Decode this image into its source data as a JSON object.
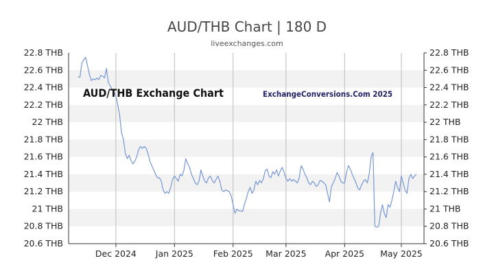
{
  "title": "AUD/THB Chart | 180 D",
  "subtitle": "liveexchanges.com",
  "watermark_left": "AUD/THB Exchange Chart",
  "watermark_right": "ExchangeConversions.Com 2025",
  "colors": {
    "line": "#7596d4",
    "band": "#f2f2f2",
    "axis": "#333333",
    "grid_v": "#bbbbbb"
  },
  "chart_data": {
    "type": "line",
    "title": "AUD/THB Chart | 180 D",
    "ylim": [
      20.6,
      22.8
    ],
    "y_ticks": [
      22.8,
      22.6,
      22.4,
      22.2,
      22.0,
      21.8,
      21.6,
      21.4,
      21.2,
      21.0,
      20.8,
      20.6
    ],
    "y_tick_labels": [
      "22.8 THB",
      "22.6 THB",
      "22.4 THB",
      "22.2 THB",
      "22 THB",
      "21.8 THB",
      "21.6 THB",
      "21.4 THB",
      "21.2 THB",
      "21 THB",
      "20.8 THB",
      "20.6 THB"
    ],
    "x_tick_labels": [
      "Dec 2024",
      "Jan 2025",
      "Feb 2025",
      "Mar 2025",
      "Apr 2025",
      "May 2025"
    ],
    "x_tick_dates": [
      "2024-12-01",
      "2025-01-01",
      "2025-02-01",
      "2025-03-01",
      "2025-04-01",
      "2025-05-01"
    ],
    "xlim": [
      "2024-11-06",
      "2025-05-13"
    ],
    "grid": "horizontal bands + vertical month lines",
    "series": [
      {
        "x": [
          "2024-11-11",
          "2024-11-12",
          "2024-11-13",
          "2024-11-14",
          "2024-11-15",
          "2024-11-16",
          "2024-11-17",
          "2024-11-18",
          "2024-11-19",
          "2024-11-20",
          "2024-11-21",
          "2024-11-22",
          "2024-11-23",
          "2024-11-24",
          "2024-11-25",
          "2024-11-26",
          "2024-11-27",
          "2024-11-28",
          "2024-11-29",
          "2024-11-30",
          "2024-12-01",
          "2024-12-02",
          "2024-12-03",
          "2024-12-04",
          "2024-12-05",
          "2024-12-06",
          "2024-12-07",
          "2024-12-08",
          "2024-12-09",
          "2024-12-10",
          "2024-12-11",
          "2024-12-12",
          "2024-12-13",
          "2024-12-14",
          "2024-12-15",
          "2024-12-16",
          "2024-12-17",
          "2024-12-18",
          "2024-12-19",
          "2024-12-20",
          "2024-12-21",
          "2024-12-22",
          "2024-12-23",
          "2024-12-24",
          "2024-12-25",
          "2024-12-26",
          "2024-12-27",
          "2024-12-28",
          "2024-12-29",
          "2024-12-30",
          "2024-12-31",
          "2025-01-01",
          "2025-01-02",
          "2025-01-03",
          "2025-01-04",
          "2025-01-05",
          "2025-01-06",
          "2025-01-07",
          "2025-01-08",
          "2025-01-09",
          "2025-01-10",
          "2025-01-11",
          "2025-01-12",
          "2025-01-13",
          "2025-01-14",
          "2025-01-15",
          "2025-01-16",
          "2025-01-17",
          "2025-01-18",
          "2025-01-19",
          "2025-01-20",
          "2025-01-21",
          "2025-01-22",
          "2025-01-23",
          "2025-01-24",
          "2025-01-25",
          "2025-01-26",
          "2025-01-27",
          "2025-01-28",
          "2025-01-29",
          "2025-01-30",
          "2025-01-31",
          "2025-02-01",
          "2025-02-02",
          "2025-02-03",
          "2025-02-04",
          "2025-02-05",
          "2025-02-06",
          "2025-02-07",
          "2025-02-08",
          "2025-02-09",
          "2025-02-10",
          "2025-02-11",
          "2025-02-12",
          "2025-02-13",
          "2025-02-14",
          "2025-02-15",
          "2025-02-16",
          "2025-02-17",
          "2025-02-18",
          "2025-02-19",
          "2025-02-20",
          "2025-02-21",
          "2025-02-22",
          "2025-02-23",
          "2025-02-24",
          "2025-02-25",
          "2025-02-26",
          "2025-02-27",
          "2025-02-28",
          "2025-03-01",
          "2025-03-02",
          "2025-03-03",
          "2025-03-04",
          "2025-03-05",
          "2025-03-06",
          "2025-03-07",
          "2025-03-08",
          "2025-03-09",
          "2025-03-10",
          "2025-03-11",
          "2025-03-12",
          "2025-03-13",
          "2025-03-14",
          "2025-03-15",
          "2025-03-16",
          "2025-03-17",
          "2025-03-18",
          "2025-03-19",
          "2025-03-20",
          "2025-03-21",
          "2025-03-22",
          "2025-03-23",
          "2025-03-24",
          "2025-03-25",
          "2025-03-26",
          "2025-03-27",
          "2025-03-28",
          "2025-03-29",
          "2025-03-30",
          "2025-03-31",
          "2025-04-01",
          "2025-04-02",
          "2025-04-03",
          "2025-04-04",
          "2025-04-05",
          "2025-04-06",
          "2025-04-07",
          "2025-04-08",
          "2025-04-09",
          "2025-04-10",
          "2025-04-11",
          "2025-04-12",
          "2025-04-13",
          "2025-04-14",
          "2025-04-15",
          "2025-04-16",
          "2025-04-17",
          "2025-04-18",
          "2025-04-19",
          "2025-04-20",
          "2025-04-21",
          "2025-04-22",
          "2025-04-23",
          "2025-04-24",
          "2025-04-25",
          "2025-04-26",
          "2025-04-27",
          "2025-04-28",
          "2025-04-29",
          "2025-04-30",
          "2025-05-01",
          "2025-05-02",
          "2025-05-03",
          "2025-05-04",
          "2025-05-05",
          "2025-05-06",
          "2025-05-07",
          "2025-05-08",
          "2025-05-09"
        ],
        "y": [
          22.52,
          22.52,
          22.68,
          22.72,
          22.75,
          22.65,
          22.55,
          22.48,
          22.5,
          22.49,
          22.51,
          22.49,
          22.54,
          22.53,
          22.51,
          22.62,
          22.46,
          22.42,
          22.38,
          22.35,
          22.3,
          22.2,
          22.08,
          21.88,
          21.8,
          21.64,
          21.58,
          21.62,
          21.56,
          21.52,
          21.55,
          21.6,
          21.68,
          21.72,
          21.7,
          21.72,
          21.7,
          21.64,
          21.55,
          21.5,
          21.45,
          21.4,
          21.36,
          21.36,
          21.32,
          21.22,
          21.18,
          21.2,
          21.18,
          21.25,
          21.34,
          21.38,
          21.35,
          21.32,
          21.4,
          21.38,
          21.45,
          21.58,
          21.52,
          21.48,
          21.4,
          21.35,
          21.3,
          21.28,
          21.32,
          21.45,
          21.38,
          21.32,
          21.3,
          21.36,
          21.38,
          21.33,
          21.3,
          21.34,
          21.38,
          21.32,
          21.22,
          21.2,
          21.22,
          21.21,
          21.2,
          21.15,
          21.05,
          20.95,
          21.0,
          20.98,
          20.98,
          20.97,
          21.05,
          21.12,
          21.2,
          21.25,
          21.18,
          21.22,
          21.32,
          21.28,
          21.33,
          21.3,
          21.35,
          21.44,
          21.46,
          21.38,
          21.36,
          21.43,
          21.4,
          21.45,
          21.38,
          21.44,
          21.48,
          21.42,
          21.35,
          21.32,
          21.35,
          21.32,
          21.34,
          21.32,
          21.3,
          21.36,
          21.5,
          21.46,
          21.4,
          21.36,
          21.3,
          21.28,
          21.32,
          21.3,
          21.26,
          21.28,
          21.33,
          21.32,
          21.3,
          21.28,
          21.18,
          21.08,
          21.26,
          21.3,
          21.35,
          21.42,
          21.38,
          21.32,
          21.3,
          21.3,
          21.42,
          21.5,
          21.46,
          21.4,
          21.35,
          21.3,
          21.24,
          21.22,
          21.28,
          21.32,
          21.34,
          21.3,
          21.4,
          21.6,
          21.65,
          20.8,
          20.79,
          20.8,
          20.95,
          21.05,
          20.95,
          20.9,
          21.05,
          21.02,
          21.1,
          21.2,
          21.32,
          21.25,
          21.2,
          21.38,
          21.3,
          21.22,
          21.18,
          21.35,
          21.4,
          21.35,
          21.38,
          21.4
        ]
      }
    ]
  }
}
